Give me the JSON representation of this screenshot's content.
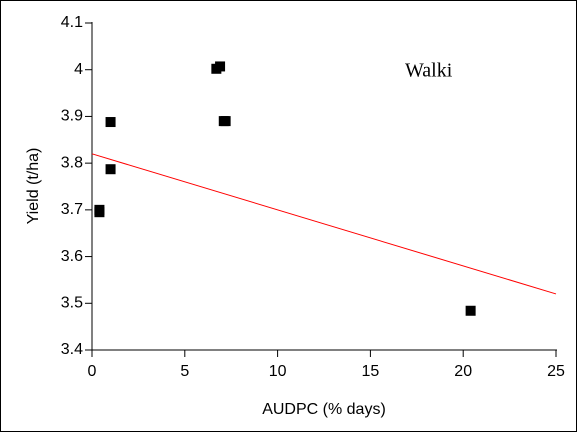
{
  "chart_data": {
    "type": "scatter",
    "x": [
      0.4,
      0.4,
      1.0,
      1.0,
      6.7,
      6.9,
      7.1,
      7.2,
      20.4
    ],
    "values": [
      3.7,
      3.695,
      3.888,
      3.787,
      4.002,
      4.007,
      3.89,
      3.89,
      3.484
    ],
    "color": "#000000",
    "trend": {
      "x": [
        0,
        25
      ],
      "values": [
        3.82,
        3.52
      ],
      "color": "#ff0000"
    },
    "xlabel": "AUDPC (% days)",
    "ylabel": "Yield (t/ha)",
    "annotation": "Walki",
    "xlim": [
      0,
      25
    ],
    "ylim": [
      3.4,
      4.1
    ],
    "xticks": [
      0,
      5,
      10,
      15,
      20,
      25
    ],
    "yticks": [
      3.4,
      3.5,
      3.6,
      3.7,
      3.8,
      3.9,
      4,
      4.1
    ]
  }
}
